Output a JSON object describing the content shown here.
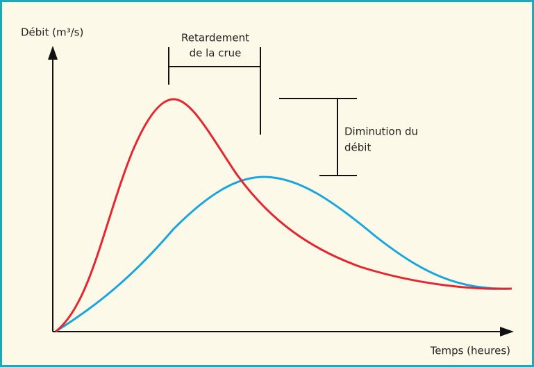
{
  "y_axis_label": "Débit (m³/s)",
  "x_axis_label": "Temps (heures)",
  "annotations": [
    {
      "lines": [
        "Retardement",
        "de la crue"
      ]
    },
    {
      "lines": [
        "Diminution du",
        "débit"
      ]
    }
  ]
}
